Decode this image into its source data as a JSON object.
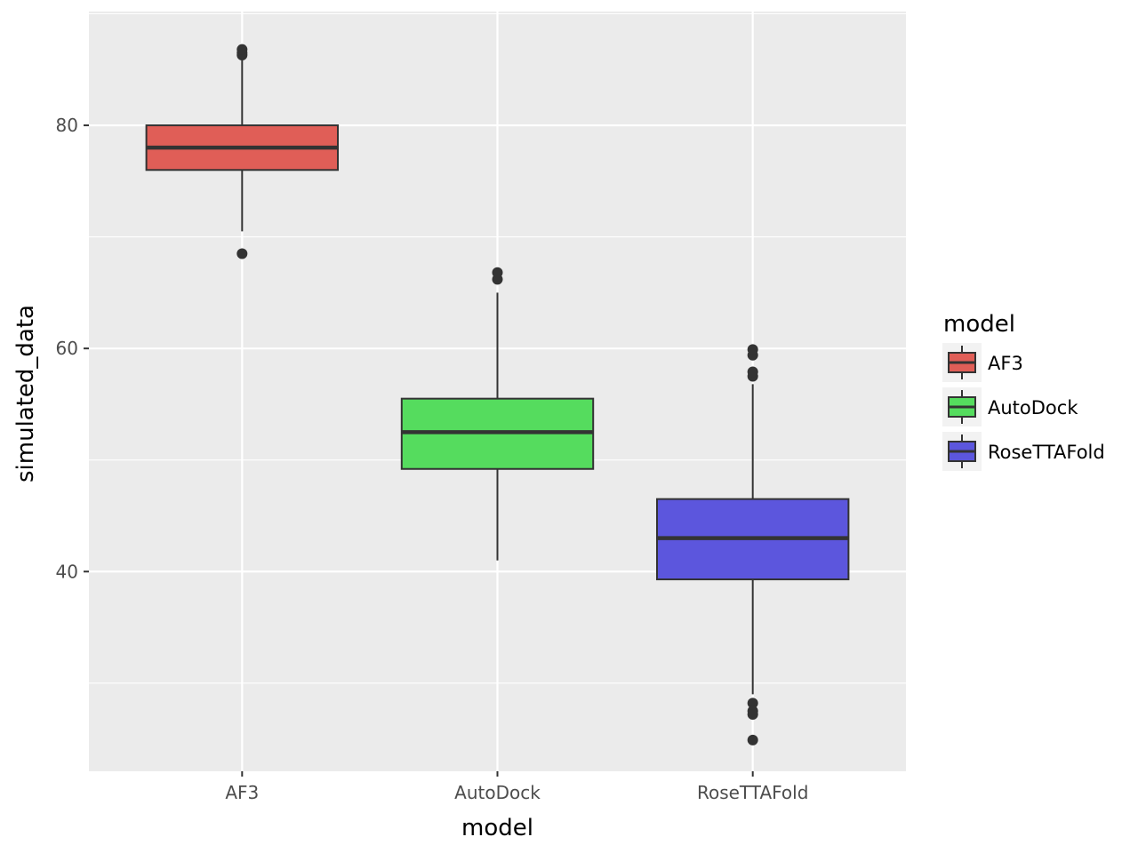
{
  "chart_data": {
    "type": "boxplot",
    "title": "",
    "xlabel": "model",
    "ylabel": "simulated_data",
    "categories": [
      "AF3",
      "AutoDock",
      "RoseTTAFold"
    ],
    "ylim": [
      22.1,
      90.2
    ],
    "y_ticks": [
      40,
      60,
      80
    ],
    "y_tick_labels": [
      "40",
      "60",
      "80"
    ],
    "grid": true,
    "legend": {
      "title": "model",
      "position": "right",
      "entries": [
        "AF3",
        "AutoDock",
        "RoseTTAFold"
      ]
    },
    "series": [
      {
        "name": "AF3",
        "color": "#e05e57",
        "whisker_low": 70.5,
        "q1": 76.0,
        "median": 78.0,
        "q3": 80.0,
        "whisker_high": 86.0,
        "outliers": [
          68.5,
          86.3,
          86.5,
          86.8
        ]
      },
      {
        "name": "AutoDock",
        "color": "#55dc5e",
        "whisker_low": 41.0,
        "q1": 49.2,
        "median": 52.5,
        "q3": 55.5,
        "whisker_high": 65.0,
        "outliers": [
          66.2,
          66.8
        ]
      },
      {
        "name": "RoseTTAFold",
        "color": "#5c56dd",
        "whisker_low": 29.0,
        "q1": 39.3,
        "median": 43.0,
        "q3": 46.5,
        "whisker_high": 56.8,
        "outliers": [
          57.5,
          57.9,
          59.4,
          59.9,
          28.2,
          27.5,
          27.2,
          24.9
        ]
      }
    ]
  }
}
